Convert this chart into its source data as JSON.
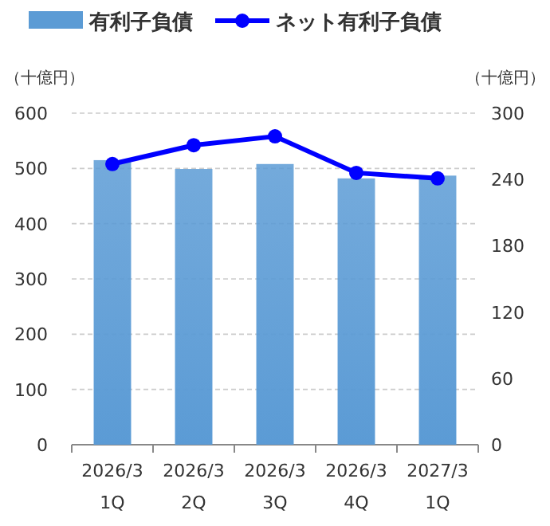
{
  "chart_data": {
    "type": "bar",
    "ylabel": "（十億円）",
    "y2label": "（十億円）",
    "categories": [
      "2026/3\n1Q",
      "2026/3\n2Q",
      "2026/3\n3Q",
      "2026/3\n4Q",
      "2027/3\n1Q"
    ],
    "series": [
      {
        "name": "有利子負債",
        "color": "#5b9bd5",
        "values": [
          515,
          499,
          508,
          482,
          487
        ]
      },
      {
        "name": "ネット有利子負債",
        "type": "line",
        "axis": "y2",
        "color": "#0000ff",
        "marker": "circle",
        "values": [
          254,
          271,
          279,
          246,
          241
        ]
      }
    ],
    "ylim": [
      0,
      600
    ],
    "yticks": [
      0,
      100,
      200,
      300,
      400,
      500,
      600
    ],
    "y2lim": [
      0,
      300
    ],
    "y2ticks": [
      0,
      60,
      120,
      180,
      240,
      300
    ],
    "grid": "y",
    "legend": "top"
  }
}
